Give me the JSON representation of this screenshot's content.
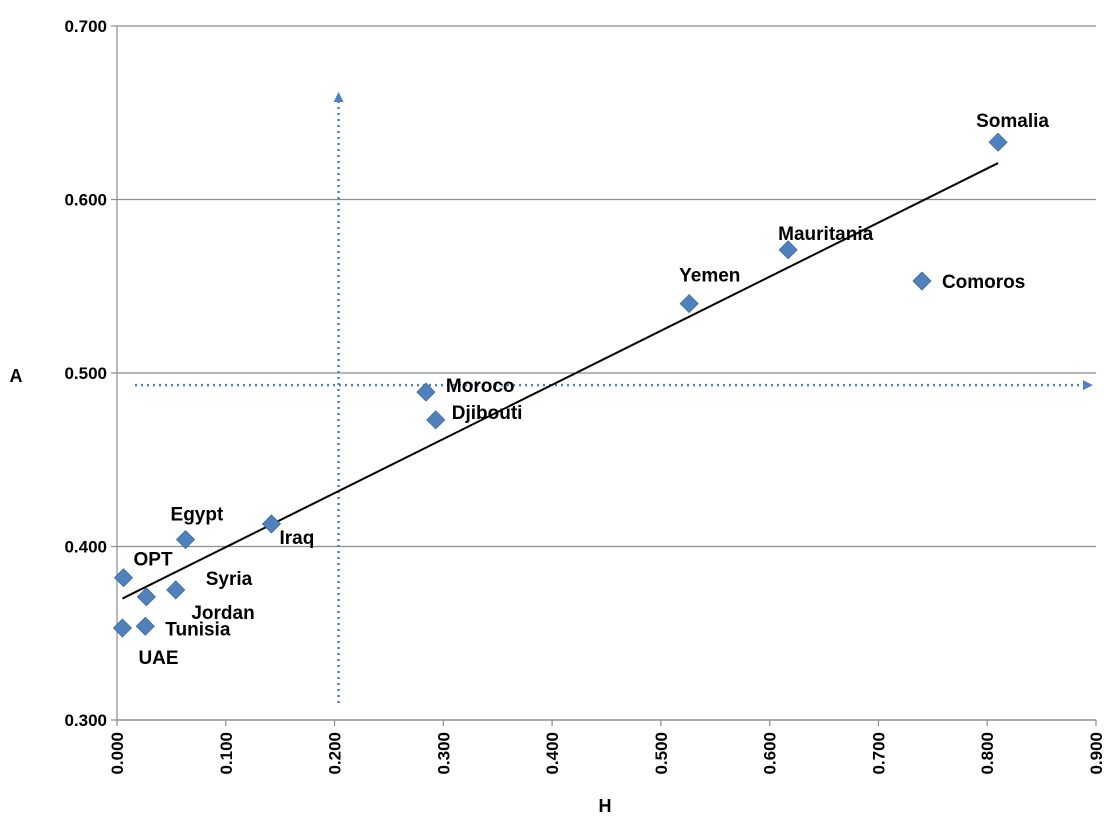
{
  "chart_data": {
    "type": "scatter",
    "title": "",
    "xlabel": "H",
    "ylabel": "A",
    "xlim": [
      0,
      0.9
    ],
    "ylim": [
      0.3,
      0.7
    ],
    "x_ticks": [
      "0.000",
      "0.100",
      "0.200",
      "0.300",
      "0.400",
      "0.500",
      "0.600",
      "0.700",
      "0.800",
      "0.900"
    ],
    "y_ticks": [
      "0.300",
      "0.400",
      "0.500",
      "0.600",
      "0.700"
    ],
    "grid": "horizontal",
    "marker_color": "#4F81BD",
    "guide_color": "#4F81BD",
    "trendline_color": "#000000",
    "points": [
      {
        "label": "Somalia",
        "x": 0.81,
        "y": 0.633
      },
      {
        "label": "Mauritania",
        "x": 0.617,
        "y": 0.571
      },
      {
        "label": "Comoros",
        "x": 0.74,
        "y": 0.553
      },
      {
        "label": "Yemen",
        "x": 0.526,
        "y": 0.54
      },
      {
        "label": "Moroco",
        "x": 0.284,
        "y": 0.489
      },
      {
        "label": "Djibouti",
        "x": 0.293,
        "y": 0.473
      },
      {
        "label": "Egypt",
        "x": 0.063,
        "y": 0.404
      },
      {
        "label": "Iraq",
        "x": 0.142,
        "y": 0.413
      },
      {
        "label": "OPT",
        "x": 0.006,
        "y": 0.382
      },
      {
        "label": "Syria",
        "x": 0.054,
        "y": 0.375
      },
      {
        "label": "Jordan",
        "x": 0.027,
        "y": 0.371
      },
      {
        "label": "Tunisia",
        "x": 0.026,
        "y": 0.354
      },
      {
        "label": "UAE",
        "x": 0.005,
        "y": 0.353
      }
    ],
    "trendline": {
      "x": [
        0.005,
        0.81
      ],
      "y": [
        0.37,
        0.621
      ]
    },
    "guides": {
      "vertical_x": 0.2,
      "horizontal_y": 0.493
    }
  }
}
